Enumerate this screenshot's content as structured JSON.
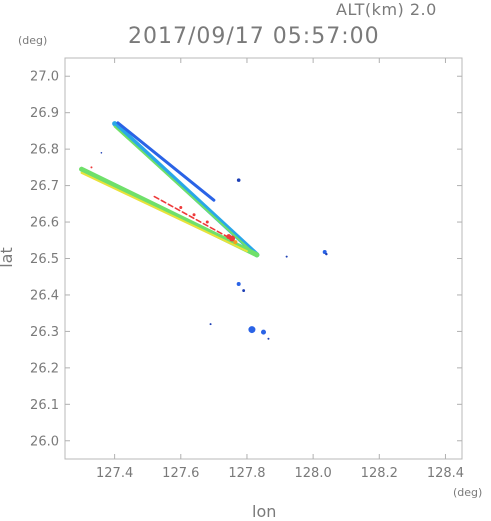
{
  "header": {
    "altitude": "ALT(km) 2.0",
    "datetime": "2017/09/17 05:57:00"
  },
  "chart_data": {
    "type": "scatter",
    "title": "2017/09/17 05:57:00",
    "subtitle": "ALT(km) 2.0",
    "xlabel": "lon",
    "ylabel": "lat",
    "xunit": "(deg)",
    "yunit": "(deg)",
    "xlim": [
      127.25,
      128.45
    ],
    "ylim": [
      25.95,
      27.05
    ],
    "xticks": [
      127.4,
      127.6,
      127.8,
      128.0,
      128.2,
      128.4
    ],
    "yticks": [
      26.0,
      26.1,
      26.2,
      26.3,
      26.4,
      26.5,
      26.6,
      26.7,
      26.8,
      26.9,
      27.0
    ],
    "grid": false,
    "colors": {
      "blue": "#2a63e6",
      "cyan": "#29a7e8",
      "green": "#6fe06a",
      "yellow": "#e8e23a",
      "orange": "#f0a020",
      "red": "#ee3a3a",
      "navy": "#1d3fb5"
    },
    "echo_bands": [
      {
        "name": "upper-edge",
        "color": "cyan",
        "from": [
          127.4,
          26.87
        ],
        "to": [
          127.83,
          26.51
        ]
      },
      {
        "name": "upper-edge-blue",
        "color": "blue",
        "from": [
          127.41,
          26.872
        ],
        "to": [
          127.7,
          26.66
        ]
      },
      {
        "name": "upper-edge-green",
        "color": "green",
        "from": [
          127.4,
          26.862
        ],
        "to": [
          127.82,
          26.515
        ]
      },
      {
        "name": "lower-edge",
        "color": "green",
        "from": [
          127.3,
          26.745
        ],
        "to": [
          127.83,
          26.51
        ]
      },
      {
        "name": "lower-edge-yellow",
        "color": "yellow",
        "from": [
          127.3,
          26.735
        ],
        "to": [
          127.8,
          26.52
        ]
      },
      {
        "name": "center-spoke",
        "color": "red",
        "from": [
          127.52,
          26.67
        ],
        "to": [
          127.76,
          26.55
        ]
      }
    ],
    "points": [
      {
        "x": 127.755,
        "y": 26.555,
        "color": "red",
        "size": 3
      },
      {
        "x": 127.745,
        "y": 26.56,
        "color": "red",
        "size": 2.5
      },
      {
        "x": 127.765,
        "y": 26.545,
        "color": "orange",
        "size": 2
      },
      {
        "x": 127.6,
        "y": 26.64,
        "color": "red",
        "size": 1.5
      },
      {
        "x": 127.64,
        "y": 26.62,
        "color": "red",
        "size": 1.5
      },
      {
        "x": 127.68,
        "y": 26.6,
        "color": "red",
        "size": 1.5
      },
      {
        "x": 127.775,
        "y": 26.715,
        "color": "navy",
        "size": 1.8
      },
      {
        "x": 127.92,
        "y": 26.505,
        "color": "navy",
        "size": 1
      },
      {
        "x": 128.035,
        "y": 26.518,
        "color": "blue",
        "size": 2
      },
      {
        "x": 128.04,
        "y": 26.512,
        "color": "navy",
        "size": 1.2
      },
      {
        "x": 127.775,
        "y": 26.43,
        "color": "blue",
        "size": 2
      },
      {
        "x": 127.79,
        "y": 26.412,
        "color": "navy",
        "size": 1.4
      },
      {
        "x": 127.69,
        "y": 26.32,
        "color": "navy",
        "size": 1
      },
      {
        "x": 127.815,
        "y": 26.305,
        "color": "blue",
        "size": 3.5
      },
      {
        "x": 127.85,
        "y": 26.298,
        "color": "blue",
        "size": 2.5
      },
      {
        "x": 127.865,
        "y": 26.28,
        "color": "navy",
        "size": 1
      },
      {
        "x": 127.36,
        "y": 26.79,
        "color": "navy",
        "size": 0.8
      },
      {
        "x": 127.33,
        "y": 26.75,
        "color": "red",
        "size": 1
      }
    ]
  }
}
